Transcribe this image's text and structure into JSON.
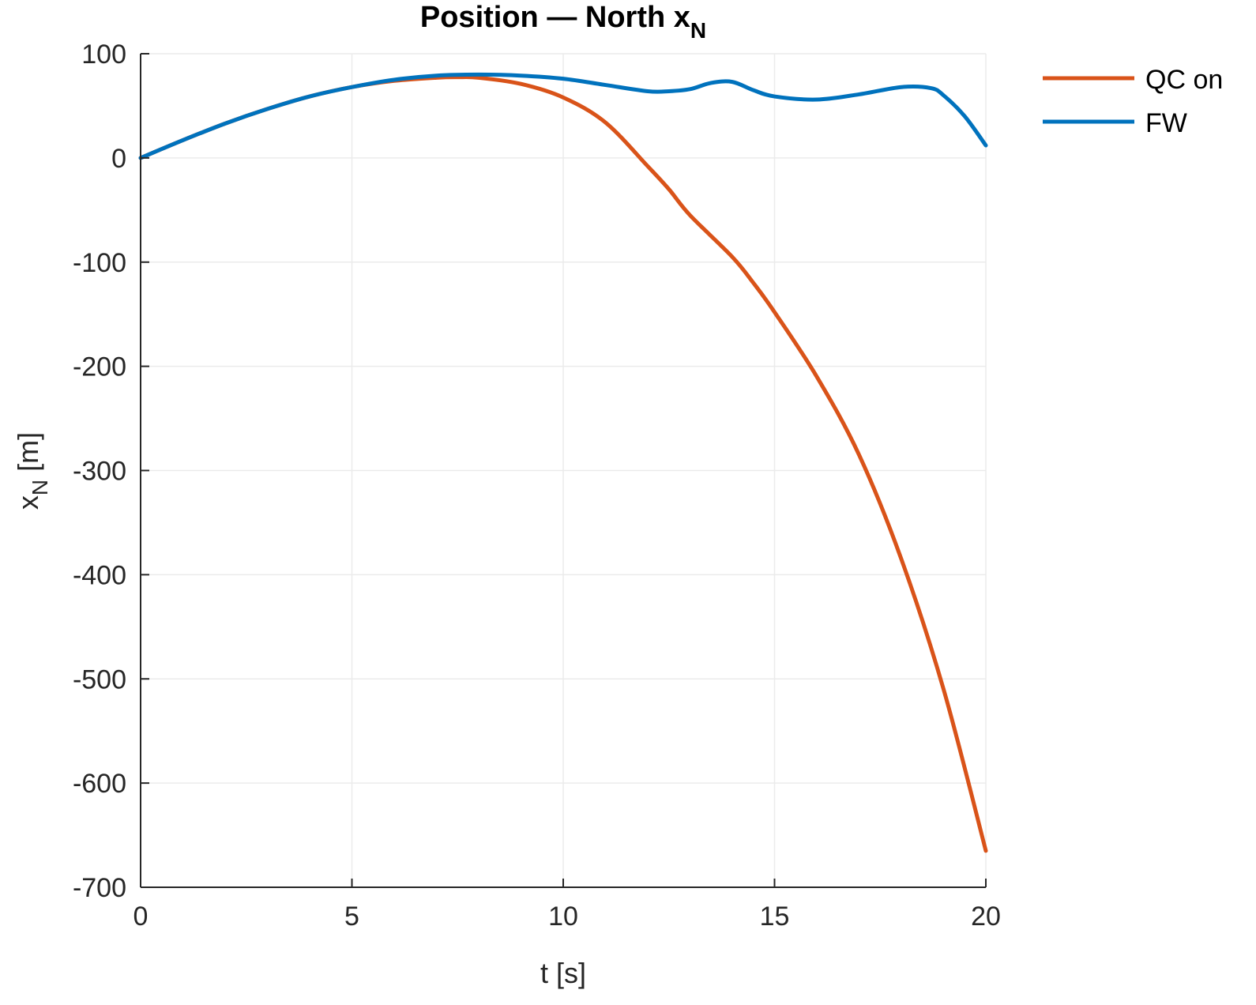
{
  "chart_data": {
    "type": "line",
    "title": "Position — North x",
    "title_subscript": "N",
    "xlabel": "t [s]",
    "ylabel": "x",
    "ylabel_subscript": "N",
    "ylabel_unit": " [m]",
    "xlim": [
      0,
      20
    ],
    "ylim": [
      -700,
      100
    ],
    "xticks": [
      0,
      5,
      10,
      15,
      20
    ],
    "yticks": [
      100,
      0,
      -100,
      -200,
      -300,
      -400,
      -500,
      -600,
      -700
    ],
    "grid": true,
    "legend_position": "top-right-outside",
    "series": [
      {
        "name": "QC on",
        "color": "#D95319",
        "x": [
          0,
          1,
          2,
          3,
          4,
          5,
          6,
          7,
          7.5,
          8,
          9,
          10,
          11,
          12,
          12.5,
          13,
          14,
          14.5,
          15,
          16,
          17,
          18,
          19,
          20
        ],
        "y": [
          0,
          17,
          33,
          47,
          59,
          68,
          74,
          77,
          77.5,
          77,
          71,
          58,
          34,
          -8,
          -30,
          -55,
          -95,
          -120,
          -148,
          -210,
          -285,
          -385,
          -510,
          -665
        ]
      },
      {
        "name": "FW",
        "color": "#0072BD",
        "x": [
          0,
          1,
          2,
          3,
          4,
          5,
          6,
          7,
          8,
          9,
          10,
          11,
          12,
          12.5,
          13,
          13.5,
          14,
          14.5,
          15,
          16,
          17,
          18,
          18.7,
          19,
          19.5,
          20
        ],
        "y": [
          0,
          17,
          33,
          47,
          59,
          68,
          75,
          79,
          80,
          79,
          76,
          70,
          64,
          64,
          66,
          72,
          73,
          65,
          59,
          56,
          61,
          68,
          67,
          60,
          40,
          12
        ]
      }
    ]
  }
}
